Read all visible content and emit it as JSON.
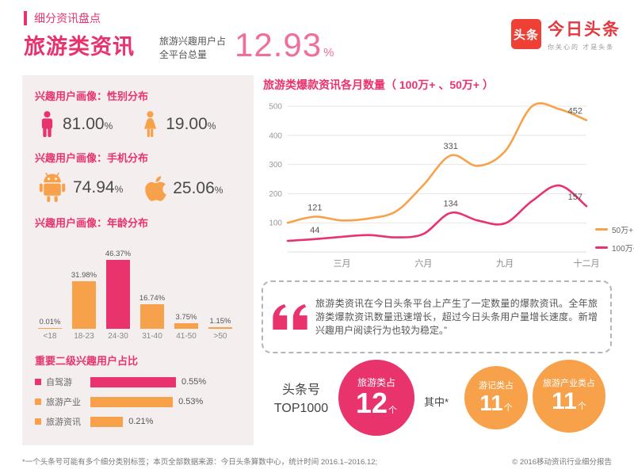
{
  "colors": {
    "pink": "#e8336d",
    "orange": "#f8a14b",
    "brand_red": "#ee4034",
    "stat_pink": "#ef6e9e"
  },
  "header": {
    "kicker": "细分资讯盘点",
    "title": "旅游类资讯",
    "stat_label_line1": "旅游兴趣用户占",
    "stat_label_line2": "全平台总量",
    "stat_value": "12.93",
    "stat_unit": "%"
  },
  "logo": {
    "mark": "头条",
    "name": "今日头条",
    "tagline": "你关心的 才是头条"
  },
  "profile": {
    "gender": {
      "title": "兴趣用户画像：性别分布",
      "male": "81.00",
      "female": "19.00",
      "unit": "%"
    },
    "phone": {
      "title": "兴趣用户画像：手机分布",
      "android": "74.94",
      "apple": "25.06",
      "unit": "%"
    }
  },
  "quote": {
    "text": "旅游类资讯在今日头条平台上产生了一定数量的爆款资讯。全年旅游类爆款资讯数量迅速增长，超过今日头条用户量增长速度。新增兴趣用户阅读行为也较为稳定。”"
  },
  "bottom": {
    "label_line1": "头条号",
    "label_line2": "TOP1000",
    "middle_label": "其中*",
    "circles": [
      {
        "title": "旅游类占",
        "value": "12",
        "unit": "个",
        "color": "#e8336d"
      },
      {
        "title": "游记类占",
        "value": "11",
        "unit": "个",
        "color": "#f8a14b"
      },
      {
        "title": "旅游产业类占",
        "value": "11",
        "unit": "个",
        "color": "#f8a14b"
      }
    ]
  },
  "footer": {
    "left": "*一个头条号可能有多个细分类别标签；本页全部数据来源：今日头条算数中心，统计时间 2016.1–2016.12;",
    "right": "© 2016移动资讯行业细分报告"
  },
  "chart_data": [
    {
      "id": "age_distribution",
      "type": "bar",
      "title": "兴趣用户画像：年龄分布",
      "categories": [
        "<18",
        "18-23",
        "24-30",
        "31-40",
        "41-50",
        ">50"
      ],
      "values": [
        0.01,
        31.98,
        46.37,
        16.74,
        3.75,
        1.15
      ],
      "value_labels": [
        "0.01%",
        "31.98%",
        "46.37%",
        "16.74%",
        "3.75%",
        "1.15%"
      ],
      "highlight_index": 2,
      "ylim": [
        0,
        50
      ]
    },
    {
      "id": "secondary_interest",
      "type": "bar",
      "orientation": "horizontal",
      "title": "重要二级兴趣用户占比",
      "categories": [
        "自驾游",
        "旅游产业",
        "旅游资讯"
      ],
      "values": [
        0.55,
        0.53,
        0.21
      ],
      "value_labels": [
        "0.55%",
        "0.53%",
        "0.21%"
      ],
      "bar_colors": [
        "#e8336d",
        "#f8a14b",
        "#f8a14b"
      ],
      "xlim": [
        0,
        0.6
      ]
    },
    {
      "id": "monthly_hits",
      "type": "line",
      "title": "旅游类爆款资讯各月数量（ 100万+ 、50万+ ）",
      "x": [
        1,
        2,
        3,
        4,
        5,
        6,
        7,
        8,
        9,
        10,
        11,
        12
      ],
      "x_tick_labels": [
        {
          "index": 2,
          "label": "三月"
        },
        {
          "index": 5,
          "label": "六月"
        },
        {
          "index": 8,
          "label": "九月"
        },
        {
          "index": 11,
          "label": "十二月"
        }
      ],
      "ylim": [
        0,
        500
      ],
      "yticks": [
        100,
        200,
        300,
        400,
        500
      ],
      "grid": true,
      "legend_position": "right",
      "series": [
        {
          "name": "50万+",
          "color": "#f8a14b",
          "values": [
            100,
            121,
            108,
            115,
            140,
            230,
            331,
            295,
            345,
            500,
            490,
            452
          ],
          "point_labels": [
            {
              "index": 1,
              "text": "121"
            },
            {
              "index": 6,
              "text": "331"
            },
            {
              "index": 11,
              "text": "452"
            }
          ]
        },
        {
          "name": "100万+",
          "color": "#e8336d",
          "values": [
            38,
            44,
            52,
            58,
            50,
            62,
            134,
            108,
            98,
            175,
            228,
            157
          ],
          "point_labels": [
            {
              "index": 1,
              "text": "44"
            },
            {
              "index": 6,
              "text": "134"
            },
            {
              "index": 11,
              "text": "157"
            }
          ]
        }
      ]
    }
  ]
}
